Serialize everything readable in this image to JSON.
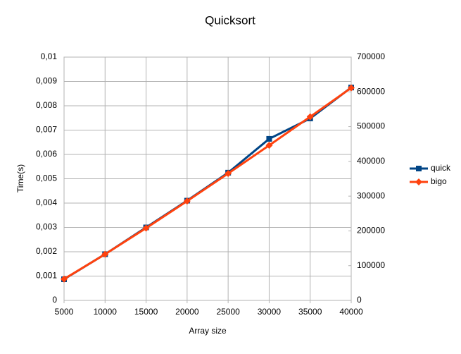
{
  "chart_data": {
    "type": "line",
    "title": "Quicksort",
    "xlabel": "Array size",
    "ylabel": "Time(s)",
    "x": [
      5000,
      10000,
      15000,
      20000,
      25000,
      30000,
      35000,
      40000
    ],
    "xlim": [
      5000,
      40000
    ],
    "xticks": [
      5000,
      10000,
      15000,
      20000,
      25000,
      30000,
      35000,
      40000
    ],
    "ylim": [
      0,
      0.01
    ],
    "yticks": [
      0,
      {
        "value": 0.001,
        "label": "0,001"
      },
      {
        "value": 0.002,
        "label": "0,002"
      },
      {
        "value": 0.003,
        "label": "0,003"
      },
      {
        "value": 0.004,
        "label": "0,004"
      },
      {
        "value": 0.005,
        "label": "0,005"
      },
      {
        "value": 0.006,
        "label": "0,006"
      },
      {
        "value": 0.007,
        "label": "0,007"
      },
      {
        "value": 0.008,
        "label": "0,008"
      },
      {
        "value": 0.009,
        "label": "0,009"
      },
      {
        "value": 0.01,
        "label": "0,01"
      }
    ],
    "y2lim": [
      0,
      700000
    ],
    "y2ticks": [
      0,
      100000,
      200000,
      300000,
      400000,
      500000,
      600000,
      700000
    ],
    "grid": true,
    "legend": "right",
    "series": [
      {
        "name": "quick",
        "color": "#004586",
        "marker": "square",
        "values": [
          0.00087,
          0.0019,
          0.003,
          0.0041,
          0.00525,
          0.00664,
          0.00748,
          0.00875
        ]
      },
      {
        "name": "bigo",
        "color": "#ff420e",
        "marker": "diamond",
        "axis": "y2",
        "values": [
          61439,
          132877,
          208090,
          285754,
          365241,
          446180,
          528340,
          611508
        ]
      }
    ]
  }
}
